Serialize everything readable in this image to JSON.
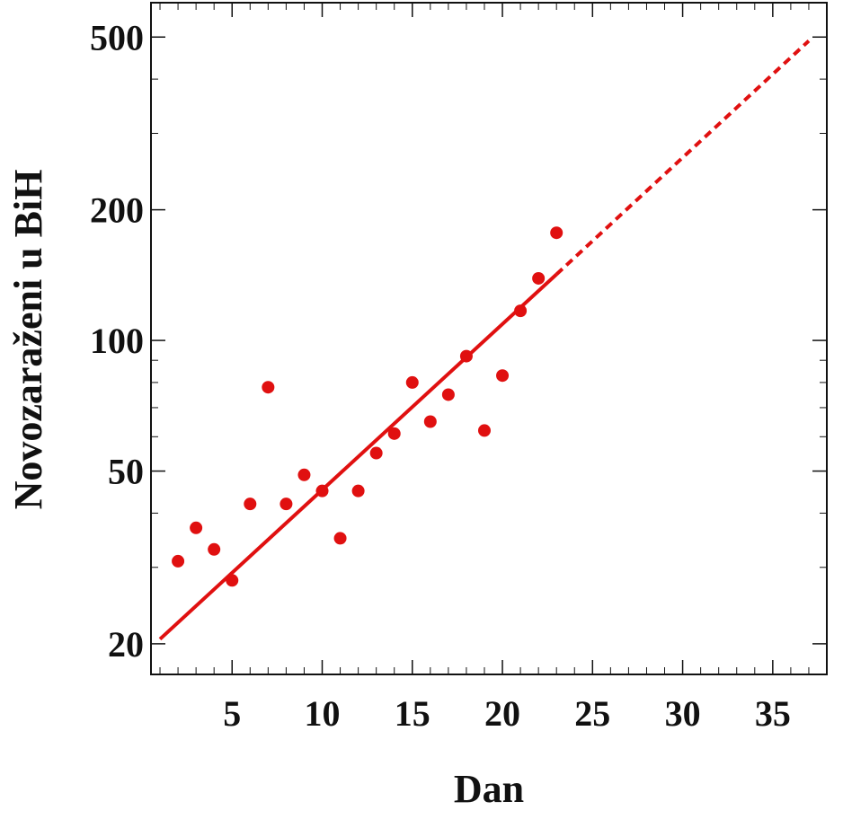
{
  "chart_data": {
    "type": "scatter",
    "title": "",
    "xlabel": "Dan",
    "ylabel": "Novozaraženi u BiH",
    "xlim": [
      0.5,
      38
    ],
    "ylim": [
      17,
      600
    ],
    "y_scale": "log",
    "x_ticks": [
      5,
      10,
      15,
      20,
      25,
      30,
      35
    ],
    "x_tick_labels": [
      "5",
      "10",
      "15",
      "20",
      "25",
      "30",
      "35"
    ],
    "y_ticks": [
      20,
      50,
      100,
      200,
      500
    ],
    "y_tick_labels": [
      "20",
      "50",
      "100",
      "200",
      "500"
    ],
    "grid": false,
    "legend": "none",
    "colors": {
      "points": "#e01010",
      "fit": "#e01010",
      "axes": "#111111"
    },
    "series": [
      {
        "kind": "points",
        "x": [
          2,
          3,
          4,
          5,
          6,
          7,
          8,
          9,
          10,
          11,
          12,
          13,
          14,
          15,
          16,
          17,
          18,
          19,
          20,
          21,
          22,
          23
        ],
        "y": [
          31,
          37,
          33,
          28,
          42,
          78,
          42,
          49,
          45,
          35,
          45,
          55,
          61,
          80,
          65,
          75,
          92,
          62,
          83,
          117,
          139,
          177
        ]
      },
      {
        "kind": "fit-line",
        "style": "solid",
        "x": [
          1,
          23
        ],
        "y": [
          20.5,
          142
        ]
      },
      {
        "kind": "fit-extrapolation",
        "style": "dashed",
        "x": [
          23,
          37
        ],
        "y": [
          142,
          490
        ]
      }
    ]
  }
}
